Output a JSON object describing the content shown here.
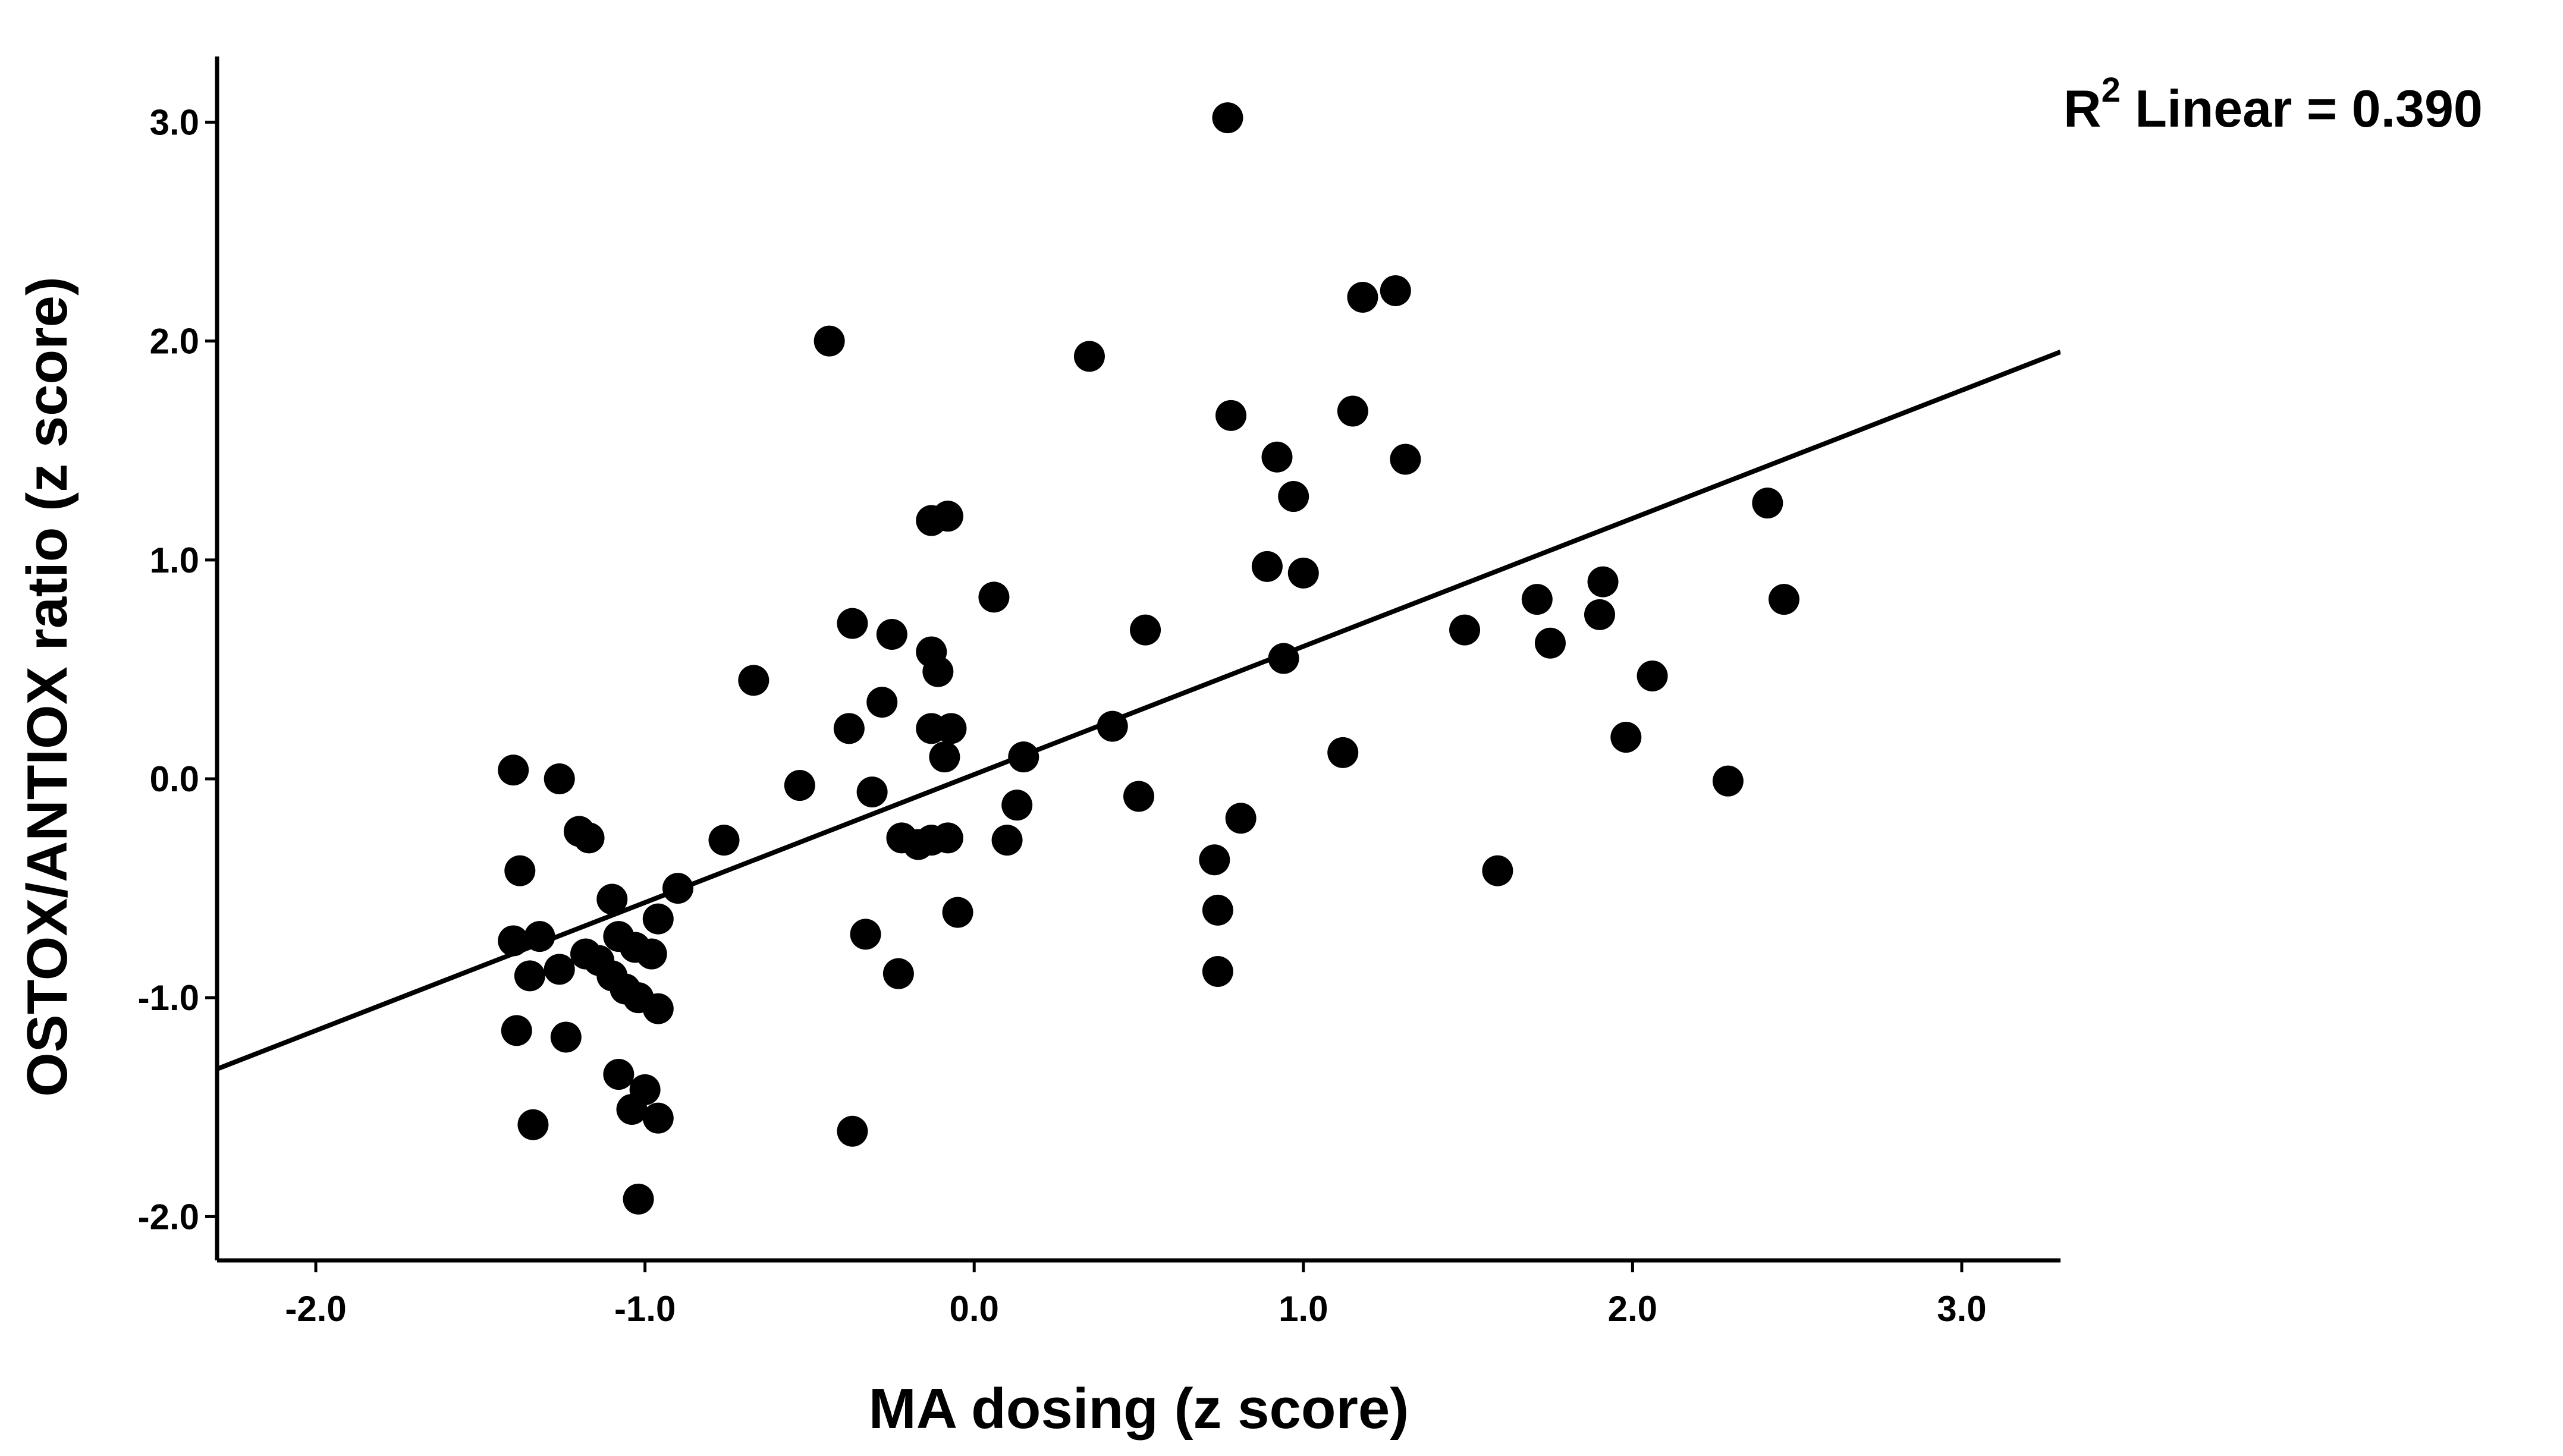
{
  "chart_data": {
    "type": "scatter",
    "title": "",
    "xlabel": "MA dosing (z score)",
    "ylabel": "OSTOX/ANTIOX ratio (z score)",
    "xlim": [
      -2.3,
      3.3
    ],
    "ylim": [
      -2.2,
      3.3
    ],
    "xticks": [
      -2.0,
      -1.0,
      0.0,
      1.0,
      2.0,
      3.0
    ],
    "xtick_labels": [
      "-2.0",
      "-1.0",
      "0.0",
      "1.0",
      "2.0",
      "3.0"
    ],
    "yticks": [
      -2.0,
      -1.0,
      0.0,
      1.0,
      2.0,
      3.0
    ],
    "ytick_labels": [
      "-2.0",
      "-1.0",
      "0.0",
      "1.0",
      "2.0",
      "3.0"
    ],
    "grid": false,
    "fit_line": {
      "type": "linear",
      "slope": 0.585,
      "intercept": 0.02,
      "x_range": [
        -2.3,
        3.3
      ]
    },
    "annotation": {
      "r_letter": "R",
      "superscript": "2",
      "text": " Linear = 0.390"
    },
    "color": "#000000",
    "points": [
      [
        -1.4,
        0.04
      ],
      [
        -1.38,
        -0.42
      ],
      [
        -1.4,
        -0.74
      ],
      [
        -1.35,
        -0.9
      ],
      [
        -1.32,
        -0.72
      ],
      [
        -1.39,
        -1.15
      ],
      [
        -1.34,
        -1.58
      ],
      [
        -1.26,
        0.0
      ],
      [
        -1.26,
        -0.87
      ],
      [
        -1.24,
        -1.18
      ],
      [
        -1.2,
        -0.24
      ],
      [
        -1.17,
        -0.27
      ],
      [
        -1.18,
        -0.8
      ],
      [
        -1.14,
        -0.83
      ],
      [
        -1.1,
        -0.9
      ],
      [
        -1.1,
        -0.55
      ],
      [
        -1.08,
        -0.72
      ],
      [
        -1.06,
        -0.96
      ],
      [
        -1.03,
        -0.77
      ],
      [
        -1.02,
        -1.0
      ],
      [
        -0.98,
        -0.8
      ],
      [
        -0.96,
        -0.64
      ],
      [
        -0.96,
        -1.05
      ],
      [
        -1.08,
        -1.35
      ],
      [
        -1.04,
        -1.51
      ],
      [
        -1.0,
        -1.42
      ],
      [
        -0.96,
        -1.55
      ],
      [
        -1.02,
        -1.92
      ],
      [
        -0.9,
        -0.5
      ],
      [
        -0.76,
        -0.28
      ],
      [
        -0.67,
        0.45
      ],
      [
        -0.53,
        -0.03
      ],
      [
        -0.44,
        2.0
      ],
      [
        -0.37,
        0.71
      ],
      [
        -0.38,
        0.23
      ],
      [
        -0.31,
        -0.06
      ],
      [
        -0.28,
        0.35
      ],
      [
        -0.25,
        0.66
      ],
      [
        -0.22,
        -0.27
      ],
      [
        -0.17,
        -0.3
      ],
      [
        -0.13,
        -0.28
      ],
      [
        -0.08,
        -0.27
      ],
      [
        -0.13,
        0.58
      ],
      [
        -0.11,
        0.49
      ],
      [
        -0.13,
        0.23
      ],
      [
        -0.07,
        0.23
      ],
      [
        -0.09,
        0.1
      ],
      [
        -0.13,
        1.18
      ],
      [
        -0.08,
        1.2
      ],
      [
        -0.33,
        -0.71
      ],
      [
        -0.23,
        -0.89
      ],
      [
        -0.05,
        -0.61
      ],
      [
        -0.37,
        -1.61
      ],
      [
        0.06,
        0.83
      ],
      [
        0.1,
        -0.28
      ],
      [
        0.13,
        -0.12
      ],
      [
        0.15,
        0.1
      ],
      [
        0.35,
        1.93
      ],
      [
        0.42,
        0.24
      ],
      [
        0.5,
        -0.08
      ],
      [
        0.52,
        0.68
      ],
      [
        0.73,
        -0.37
      ],
      [
        0.74,
        -0.6
      ],
      [
        0.74,
        -0.88
      ],
      [
        0.77,
        3.02
      ],
      [
        0.78,
        1.66
      ],
      [
        0.81,
        -0.18
      ],
      [
        0.89,
        0.97
      ],
      [
        0.92,
        1.47
      ],
      [
        0.94,
        0.55
      ],
      [
        0.97,
        1.29
      ],
      [
        1.0,
        0.94
      ],
      [
        1.12,
        0.12
      ],
      [
        1.15,
        1.68
      ],
      [
        1.18,
        2.2
      ],
      [
        1.28,
        2.23
      ],
      [
        1.31,
        1.46
      ],
      [
        1.49,
        0.68
      ],
      [
        1.59,
        -0.42
      ],
      [
        1.71,
        0.82
      ],
      [
        1.75,
        0.62
      ],
      [
        1.9,
        0.75
      ],
      [
        1.91,
        0.9
      ],
      [
        1.98,
        0.19
      ],
      [
        2.06,
        0.47
      ],
      [
        2.29,
        -0.01
      ],
      [
        2.41,
        1.26
      ],
      [
        2.46,
        0.82
      ]
    ]
  }
}
